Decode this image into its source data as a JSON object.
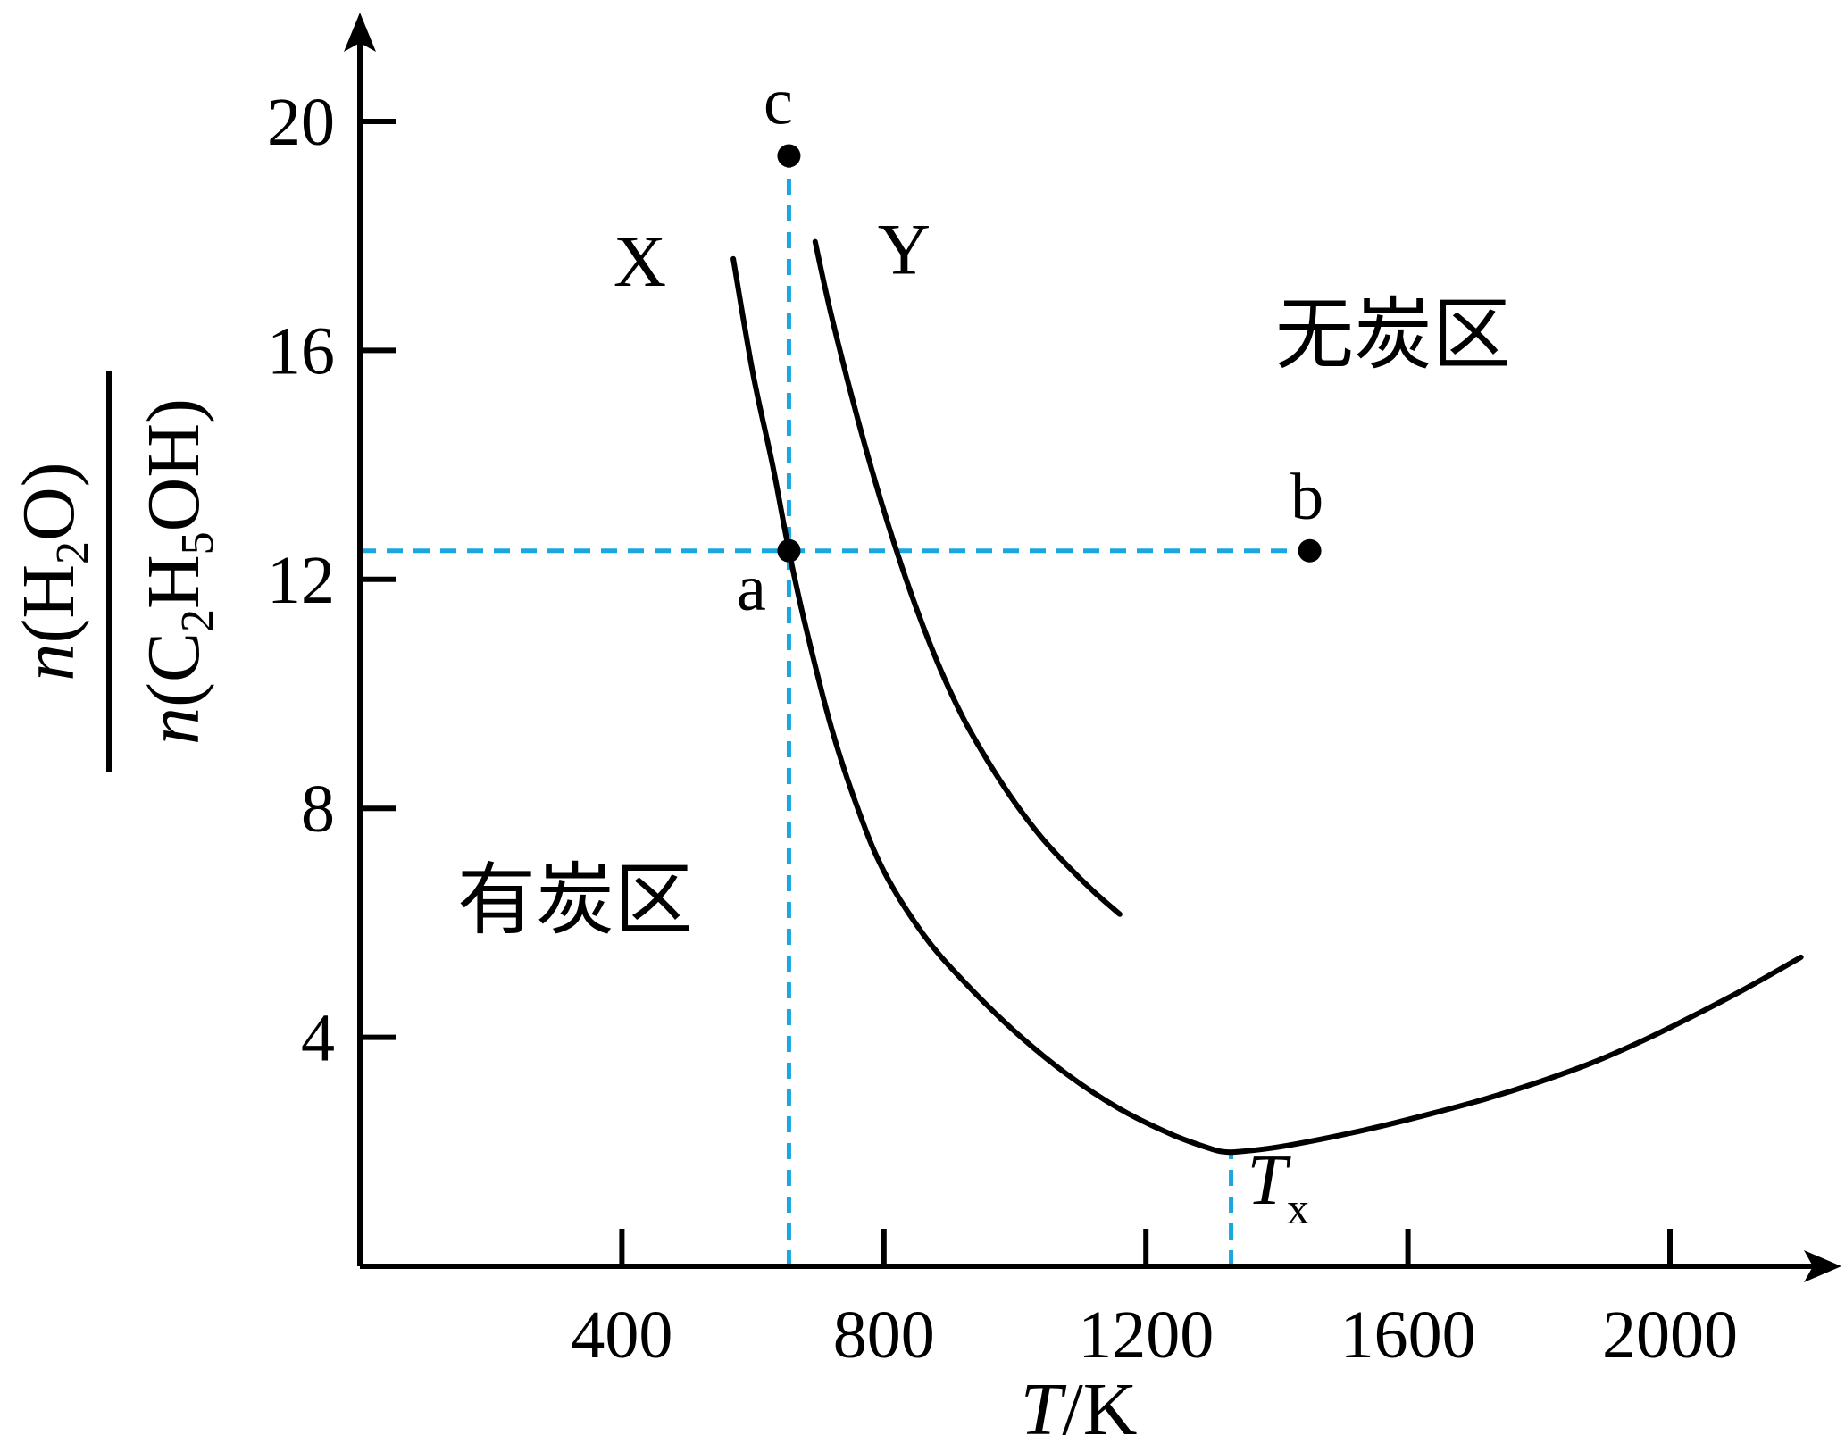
{
  "chart_data": {
    "type": "line",
    "xlabel": {
      "var": "T",
      "unit": "/K"
    },
    "ylabel": {
      "numerator": {
        "n": "n",
        "open": "(H",
        "sub": "2",
        "rest": "O)"
      },
      "denominator": {
        "n": "n",
        "open": "(C",
        "sub1": "2",
        "mid": "H",
        "sub2": "5",
        "rest": "OH)"
      }
    },
    "xlim": [
      0,
      2200
    ],
    "ylim": [
      0,
      22
    ],
    "x_ticks": [
      400,
      800,
      1200,
      1600,
      2000
    ],
    "y_ticks": [
      4,
      8,
      12,
      16,
      20
    ],
    "series": [
      {
        "name": "X",
        "color": "#000000",
        "x": [
          570,
          600,
          630,
          655,
          680,
          720,
          760,
          800,
          860,
          920,
          1000,
          1080,
          1160,
          1240,
          1300,
          1320,
          1340,
          1400,
          1480,
          1560,
          1640,
          1720,
          1800,
          1880,
          1960,
          2040,
          2120,
          2200
        ],
        "y": [
          17.6,
          15.6,
          14.0,
          12.5,
          11.2,
          9.4,
          8.0,
          6.9,
          5.8,
          5.0,
          4.1,
          3.35,
          2.75,
          2.3,
          2.05,
          2.0,
          2.0,
          2.08,
          2.25,
          2.45,
          2.68,
          2.93,
          3.22,
          3.55,
          3.95,
          4.4,
          4.88,
          5.4
        ]
      },
      {
        "name": "Y",
        "color": "#000000",
        "x": [
          695,
          720,
          760,
          800,
          840,
          880,
          920,
          960,
          1000,
          1040,
          1080,
          1120,
          1160
        ],
        "y": [
          17.9,
          16.6,
          14.8,
          13.2,
          11.8,
          10.6,
          9.6,
          8.8,
          8.1,
          7.5,
          7.0,
          6.55,
          6.15
        ]
      }
    ],
    "points": [
      {
        "label": "a",
        "x": 655,
        "y": 12.5
      },
      {
        "label": "b",
        "x": 1450,
        "y": 12.5
      },
      {
        "label": "c",
        "x": 655,
        "y": 19.4
      }
    ],
    "guides": [
      {
        "type": "horizontal",
        "y": 12.5,
        "x_from": 0,
        "x_to": 1450
      },
      {
        "type": "vertical",
        "x": 655,
        "y_from": 0,
        "y_to": 19.4
      },
      {
        "type": "vertical",
        "x": 1330,
        "y_from": 0,
        "y_to": 2.0
      }
    ],
    "guide_color": "#1aa7e0",
    "annotations": {
      "region_top": "无炭区",
      "region_bottom": "有炭区",
      "tx_var": "T",
      "tx_sub": "x"
    }
  }
}
